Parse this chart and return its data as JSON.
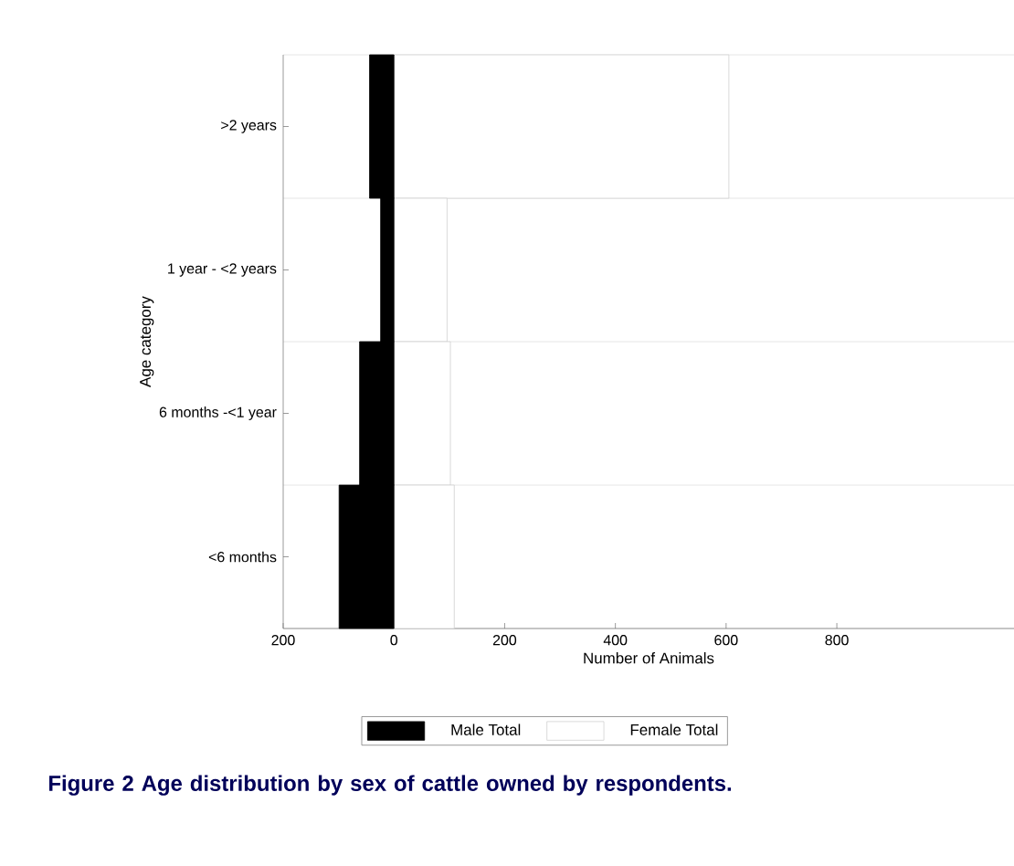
{
  "chart_data": {
    "type": "bar",
    "orientation": "horizontal",
    "title": "**Figure 2** Age distribution by sex of cattle owned by respondents.",
    "xlabel": "Number of Animals",
    "ylabel": "Age category",
    "categories": [
      ">2 years",
      "1 year - <2 years",
      "6 months -<1 year",
      "<6 months"
    ],
    "series": [
      {
        "name": "Male Total",
        "color": "#000000",
        "values": [
          -44,
          -24,
          -62,
          -99
        ]
      },
      {
        "name": "Female Total",
        "color": "#ffffff",
        "values": [
          605,
          96,
          102,
          109
        ]
      }
    ],
    "xlim": [
      -200,
      1120
    ],
    "xticks": [
      {
        "value": -200,
        "label": "200"
      },
      0,
      200,
      400,
      600,
      800
    ],
    "stacked": true,
    "grid": "y",
    "legend": "bottom"
  }
}
